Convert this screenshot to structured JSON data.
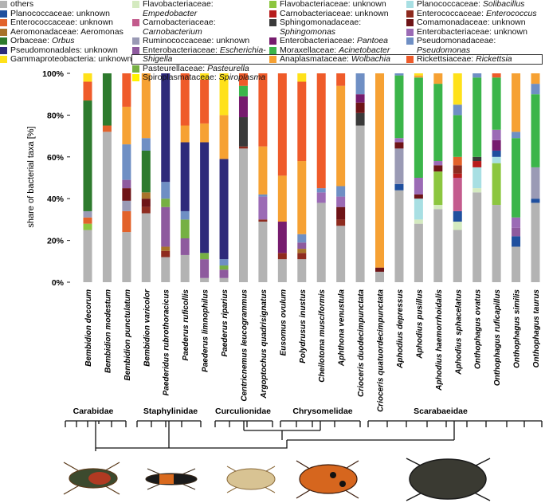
{
  "chart_data": {
    "type": "stacked_bar",
    "ylabel": "share of bacterial taxa [%]",
    "ylim": [
      0,
      100
    ],
    "yticks": [
      {
        "value": 0,
        "label": "0%"
      },
      {
        "value": 20,
        "label": "20%"
      },
      {
        "value": 40,
        "label": "40%"
      },
      {
        "value": 60,
        "label": "60%"
      },
      {
        "value": 80,
        "label": "80%"
      },
      {
        "value": 100,
        "label": "100%"
      }
    ],
    "categories": [
      "Bembidion decorum",
      "Bembidion modestum",
      "Bembidion punctulatum",
      "Bembidion varicolor",
      "Paederidus rubrothoracicus",
      "Paederus ruficollis",
      "Paederus limnophilus",
      "Paederus riparius",
      "Centricnemus leucogrammus",
      "Argoptochus quadrisignatus",
      "Eusomus ovulum",
      "Polydrusus inustus",
      "Cheilotoma musciformis",
      "Aphthona venustula",
      "Crioceris duodecimpunctata",
      "Crioceris quatuordecimpunctata",
      "Aphodius depressus",
      "Aphodius pusillus",
      "Aphodius haemorrhoidalis",
      "Aphodius sphacelatus",
      "Onthophagus ovatus",
      "Onthophagus ruficapillus",
      "Onthophagus similis",
      "Onthophagus taurus"
    ],
    "series": [
      {
        "name": "others",
        "color": "#b3b3b3",
        "italic": false,
        "values": [
          25,
          72,
          24,
          33,
          12,
          13,
          2,
          2,
          64,
          29,
          11,
          11,
          38,
          27,
          75,
          5,
          44,
          28,
          35,
          25,
          43,
          37,
          17,
          38
        ]
      },
      {
        "name": "Planococcaceae: unknown",
        "color": "#1f4f9e",
        "italic": false,
        "values": [
          0,
          0,
          0,
          0,
          0,
          0,
          0,
          0,
          0,
          0,
          0,
          0,
          0,
          0,
          0,
          0,
          3,
          0,
          0,
          5,
          0,
          3,
          5,
          2
        ]
      },
      {
        "name": "Enterococcaceae: unknown",
        "color": "#e2622a",
        "italic": false,
        "values": [
          3,
          3,
          10,
          0,
          0,
          0,
          0,
          0,
          0,
          0,
          0,
          0,
          0,
          0,
          0,
          0,
          0,
          0,
          0,
          4,
          0,
          0,
          0,
          0
        ]
      },
      {
        "name": "Aeromonadaceae: Aeromonas",
        "color": "#a8732a",
        "italic": false,
        "values": [
          0,
          0,
          0,
          3,
          2,
          0,
          0,
          0,
          0,
          0,
          0,
          2,
          0,
          0,
          0,
          0,
          0,
          0,
          0,
          0,
          0,
          0,
          0,
          0
        ]
      },
      {
        "name": "Orbaceae: Orbus",
        "color": "#2d7a2d",
        "italic": true,
        "values": [
          53,
          25,
          0,
          20,
          0,
          0,
          0,
          0,
          0,
          0,
          0,
          0,
          0,
          0,
          0,
          0,
          0,
          0,
          0,
          0,
          0,
          0,
          0,
          0
        ]
      },
      {
        "name": "Pseudomonadales: unknown",
        "color": "#2e2a7a",
        "italic": false,
        "values": [
          0,
          0,
          0,
          0,
          52,
          33,
          53,
          48,
          0,
          0,
          0,
          0,
          0,
          0,
          0,
          0,
          0,
          0,
          0,
          0,
          0,
          0,
          0,
          0
        ]
      },
      {
        "name": "Gammaproteobacteria: unknown",
        "color": "#ffe11a",
        "italic": false,
        "values": [
          4,
          0,
          0,
          0,
          0,
          0,
          3,
          20,
          0,
          0,
          0,
          4,
          0,
          0,
          0,
          0,
          0,
          1,
          0,
          15,
          0,
          0,
          0,
          0
        ]
      },
      {
        "name": "Flavobacteriaceae: Empedobacter",
        "color": "#d4eac0",
        "italic": true,
        "values": [
          0,
          0,
          0,
          0,
          0,
          0,
          0,
          0,
          0,
          0,
          0,
          0,
          0,
          0,
          0,
          0,
          0,
          2,
          2,
          4,
          2,
          0,
          0,
          0
        ]
      },
      {
        "name": "Carnobacteriaceae: Carnobacterium",
        "color": "#c35b8d",
        "italic": true,
        "values": [
          0,
          0,
          0,
          0,
          0,
          0,
          0,
          0,
          0,
          0,
          0,
          0,
          0,
          0,
          0,
          0,
          0,
          0,
          0,
          16,
          0,
          0,
          0,
          0
        ]
      },
      {
        "name": "Ruminococcaceae: unknown",
        "color": "#9a9ab5",
        "italic": false,
        "values": [
          3,
          0,
          5,
          0,
          0,
          0,
          0,
          0,
          0,
          0,
          0,
          0,
          0,
          0,
          0,
          0,
          17,
          0,
          0,
          0,
          0,
          0,
          0,
          15
        ]
      },
      {
        "name": "Enterobacteriaceae: Escherichia-Shigella",
        "color": "#8e5a9e",
        "italic": true,
        "values": [
          0,
          0,
          4,
          0,
          19,
          8,
          9,
          4,
          0,
          0,
          0,
          3,
          0,
          0,
          0,
          0,
          0,
          0,
          0,
          0,
          0,
          0,
          4,
          0
        ]
      },
      {
        "name": "Pasteurellaceae: Pasteurella",
        "color": "#76b043",
        "italic": true,
        "values": [
          0,
          0,
          0,
          0,
          4,
          9,
          3,
          2,
          0,
          0,
          0,
          0,
          0,
          0,
          0,
          0,
          0,
          0,
          0,
          0,
          0,
          0,
          0,
          0
        ]
      },
      {
        "name": "Spiroplasmataceae: Spiroplasma",
        "color": "#fff200",
        "italic": true,
        "values": [
          0,
          0,
          0,
          0,
          0,
          0,
          0,
          0,
          0,
          0,
          0,
          0,
          0,
          0,
          0,
          0,
          0,
          0,
          0,
          0,
          0,
          0,
          0,
          0
        ]
      },
      {
        "name": "Flavobacteriaceae: unknown",
        "color": "#8cc63f",
        "italic": false,
        "values": [
          3,
          0,
          0,
          0,
          0,
          0,
          0,
          0,
          0,
          0,
          0,
          0,
          0,
          0,
          0,
          0,
          0,
          0,
          16,
          0,
          0,
          20,
          0,
          0
        ]
      },
      {
        "name": "Carnobacteriaceae: unknown",
        "color": "#b71c1c",
        "italic": false,
        "values": [
          0,
          0,
          0,
          0,
          0,
          0,
          0,
          0,
          0,
          0,
          0,
          0,
          0,
          0,
          0,
          0,
          0,
          0,
          0,
          2,
          3,
          0,
          0,
          0
        ]
      },
      {
        "name": "Sphingomonadaceae: Sphingomonas",
        "color": "#3a3a3a",
        "italic": true,
        "values": [
          0,
          0,
          0,
          0,
          0,
          0,
          0,
          0,
          14,
          0,
          0,
          0,
          0,
          0,
          6,
          0,
          0,
          0,
          0,
          0,
          2,
          0,
          0,
          0
        ]
      },
      {
        "name": "Enterobacteriaceae: Pantoea",
        "color": "#761c6e",
        "italic": true,
        "values": [
          0,
          0,
          0,
          0,
          0,
          0,
          0,
          0,
          10,
          0,
          15,
          0,
          0,
          0,
          4,
          0,
          0,
          0,
          0,
          0,
          0,
          5,
          0,
          0
        ]
      },
      {
        "name": "Moraxellaceae: Acinetobacter",
        "color": "#3bb54a",
        "italic": true,
        "values": [
          0,
          0,
          0,
          0,
          0,
          0,
          0,
          0,
          5,
          0,
          0,
          0,
          0,
          0,
          0,
          0,
          30,
          48,
          37,
          20,
          38,
          25,
          38,
          35
        ]
      },
      {
        "name": "Anaplasmataceae: Wolbachia",
        "color": "#f6a133",
        "italic": true,
        "values": [
          0,
          0,
          18,
          31,
          0,
          8,
          9,
          21,
          0,
          23,
          22,
          35,
          0,
          48,
          0,
          93,
          0,
          1,
          5,
          0,
          0,
          0,
          28,
          5
        ]
      },
      {
        "name": "Planococcaceae: Solibacillus",
        "color": "#a8dfe3",
        "italic": true,
        "values": [
          0,
          0,
          0,
          0,
          0,
          0,
          0,
          0,
          0,
          0,
          0,
          0,
          0,
          0,
          0,
          0,
          0,
          10,
          0,
          0,
          10,
          3,
          0,
          0
        ]
      },
      {
        "name": "Enterococcaceae: Enterococcus",
        "color": "#8e2b1f",
        "italic": true,
        "values": [
          0,
          0,
          0,
          3,
          3,
          0,
          0,
          0,
          1,
          1,
          3,
          3,
          0,
          3,
          0,
          0,
          0,
          0,
          0,
          4,
          0,
          0,
          0,
          0
        ]
      },
      {
        "name": "Comamonadaceae: unknown",
        "color": "#6e1417",
        "italic": false,
        "values": [
          0,
          0,
          6,
          4,
          0,
          0,
          0,
          0,
          0,
          0,
          0,
          0,
          0,
          6,
          5,
          2,
          3,
          2,
          3,
          0,
          0,
          0,
          0,
          0
        ]
      },
      {
        "name": "Enterobacteriaceae: unknown",
        "color": "#9b6bb5",
        "italic": false,
        "values": [
          0,
          0,
          0,
          0,
          0,
          0,
          0,
          0,
          0,
          11,
          0,
          0,
          5,
          5,
          0,
          0,
          2,
          8,
          2,
          0,
          0,
          5,
          5,
          0
        ]
      },
      {
        "name": "Pseudomonadaceae: Pseudomonas",
        "color": "#6f8fc4",
        "italic": true,
        "values": [
          0,
          0,
          17,
          6,
          8,
          4,
          0,
          3,
          0,
          1,
          0,
          4,
          2,
          5,
          10,
          0,
          1,
          0,
          0,
          5,
          2,
          0,
          3,
          5
        ]
      },
      {
        "name": "Rickettsiaceae: Rickettsia",
        "color": "#ef5b2a",
        "italic": true,
        "values": [
          9,
          0,
          16,
          0,
          0,
          25,
          21,
          0,
          6,
          35,
          49,
          38,
          55,
          6,
          0,
          0,
          0,
          0,
          0,
          0,
          0,
          2,
          0,
          0
        ]
      }
    ]
  },
  "phylogeny": {
    "families": [
      "Carabidae",
      "Staphylinidae",
      "Curculionidae",
      "Chrysomelidae",
      "Scarabaeidae"
    ]
  }
}
